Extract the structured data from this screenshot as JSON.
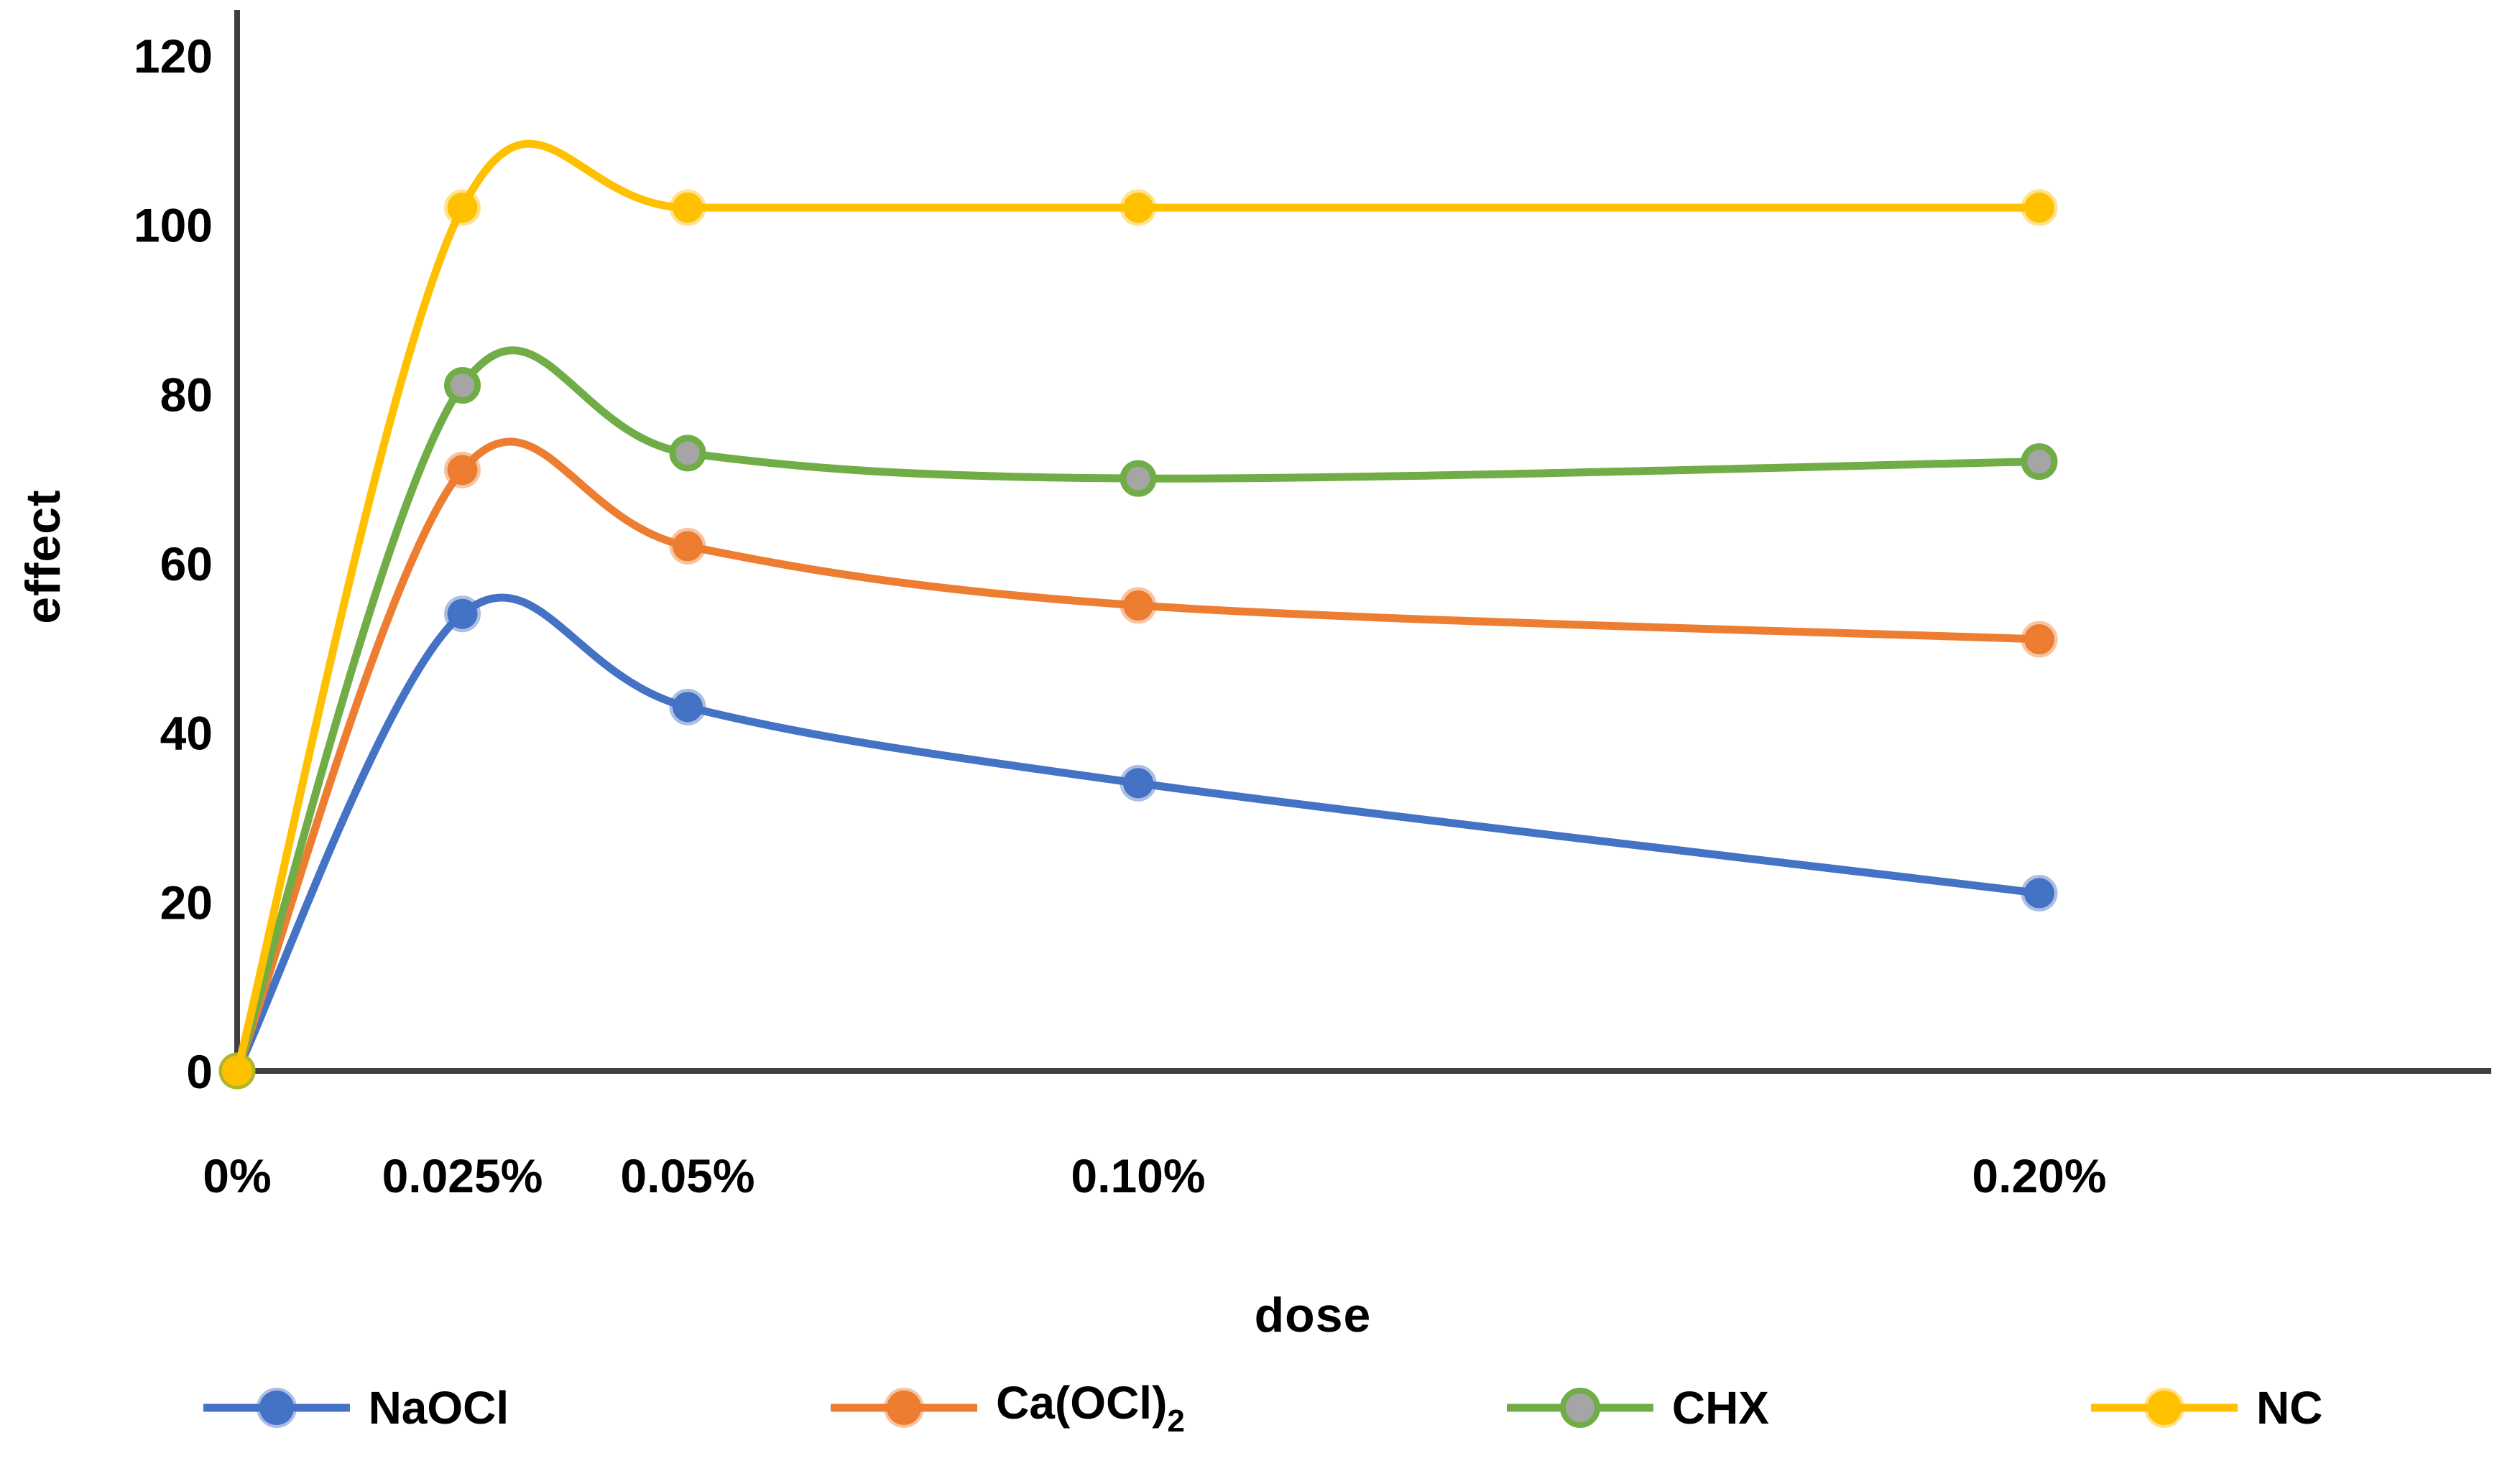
{
  "chart_data": {
    "type": "line",
    "title": "",
    "xlabel": "dose",
    "ylabel": "effect",
    "line_style": "smooth",
    "grid": false,
    "legend_position": "bottom",
    "x_tick_labels": [
      "0%",
      "0.025%",
      "0.05%",
      "0.10%",
      "0.20%"
    ],
    "x_values": [
      0,
      0.025,
      0.05,
      0.1,
      0.2
    ],
    "y_ticks": [
      0,
      20,
      40,
      60,
      80,
      100,
      120
    ],
    "ylim": [
      0,
      120
    ],
    "axis_color": "#3f3f3f",
    "text_color": "#000000",
    "series": [
      {
        "name": "NaOCl",
        "name_sub": "",
        "color": "#4472C4",
        "marker_fill": "#4472C4",
        "values": [
          0,
          54,
          43,
          34,
          21
        ]
      },
      {
        "name": "Ca(OCl)",
        "name_sub": "2",
        "color": "#ED7D31",
        "marker_fill": "#ED7D31",
        "values": [
          0,
          71,
          62,
          55,
          51
        ]
      },
      {
        "name": "CHX",
        "name_sub": "",
        "color": "#70AD47",
        "marker_fill": "#A5A5A5",
        "values": [
          0,
          81,
          73,
          70,
          72
        ]
      },
      {
        "name": "NC",
        "name_sub": "",
        "color": "#FFC000",
        "marker_fill": "#FFC000",
        "values": [
          0,
          102,
          102,
          102,
          102
        ]
      }
    ]
  }
}
